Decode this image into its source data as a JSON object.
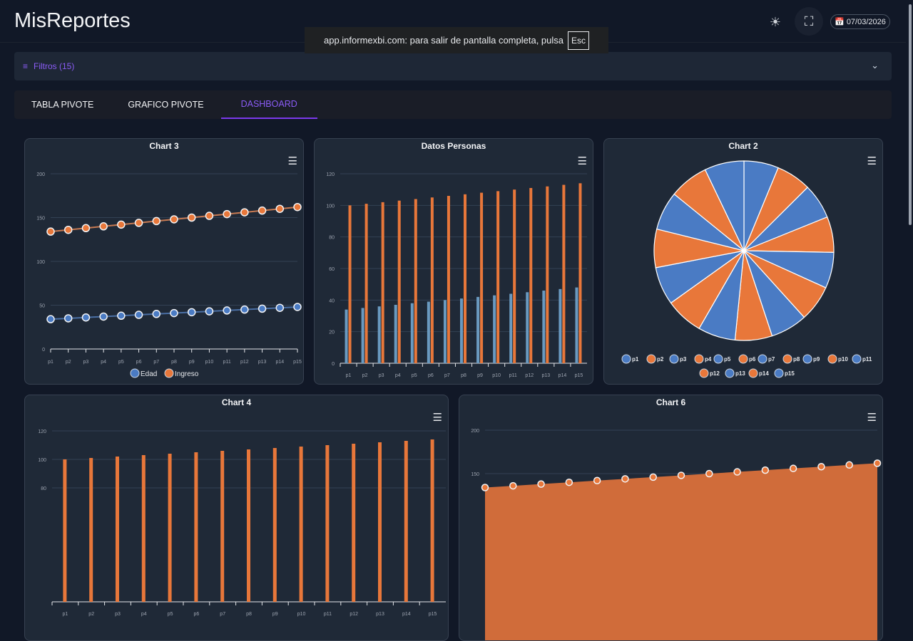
{
  "header": {
    "title": "MisReportes",
    "date": "07/03/2026",
    "icons": [
      "sun-icon",
      "fullscreen-icon",
      "calendar-icon"
    ]
  },
  "notice": {
    "text": "app.informexbi.com: para salir de pantalla completa, pulsa",
    "key": "Esc"
  },
  "filters": {
    "label": "Filtros (15)"
  },
  "tabs": [
    {
      "label": "TABLA PIVOTE"
    },
    {
      "label": "GRAFICO PIVOTE"
    },
    {
      "label": "DASHBOARD",
      "active": true
    }
  ],
  "colors": {
    "blue": "#4a7bc4",
    "orange": "#e8773a",
    "accent": "#7c3aed"
  },
  "chart_data": [
    {
      "title": "Chart 3",
      "type": "line",
      "categories": [
        "p1",
        "p2",
        "p3",
        "p4",
        "p5",
        "p6",
        "p7",
        "p8",
        "p9",
        "p10",
        "p11",
        "p12",
        "p13",
        "p14",
        "p15"
      ],
      "ylim": [
        0,
        200
      ],
      "yticks": [
        0,
        50,
        100,
        150,
        200
      ],
      "legend": "bottom",
      "series": [
        {
          "name": "Edad",
          "values": [
            34,
            35,
            36,
            37,
            38,
            39,
            40,
            41,
            42,
            43,
            44,
            45,
            46,
            47,
            48
          ]
        },
        {
          "name": "Ingreso",
          "values": [
            134,
            136,
            138,
            140,
            142,
            144,
            146,
            148,
            150,
            152,
            154,
            156,
            158,
            160,
            162
          ]
        }
      ]
    },
    {
      "title": "Datos Personas",
      "type": "bar",
      "categories": [
        "p1",
        "p2",
        "p3",
        "p4",
        "p5",
        "p6",
        "p7",
        "p8",
        "p9",
        "p10",
        "p11",
        "p12",
        "p13",
        "p14",
        "p15"
      ],
      "ylim": [
        0,
        120
      ],
      "yticks": [
        0,
        20,
        40,
        60,
        80,
        100,
        120
      ],
      "series": [
        {
          "values": [
            34,
            35,
            36,
            37,
            38,
            39,
            40,
            41,
            42,
            43,
            44,
            45,
            46,
            47,
            48
          ]
        },
        {
          "values": [
            100,
            101,
            102,
            103,
            104,
            105,
            106,
            107,
            108,
            109,
            110,
            111,
            112,
            113,
            114
          ]
        }
      ]
    },
    {
      "title": "Chart 2",
      "type": "pie",
      "categories": [
        "p1",
        "p2",
        "p3",
        "p4",
        "p5",
        "p6",
        "p7",
        "p8",
        "p9",
        "p10",
        "p11",
        "p12",
        "p13",
        "p14",
        "p15"
      ],
      "legend": "bottom",
      "values": [
        100,
        101,
        102,
        103,
        104,
        105,
        106,
        107,
        108,
        109,
        110,
        111,
        112,
        113,
        114
      ]
    },
    {
      "title": "Chart 4",
      "type": "bar",
      "categories": [
        "p1",
        "p2",
        "p3",
        "p4",
        "p5",
        "p6",
        "p7",
        "p8",
        "p9",
        "p10",
        "p11",
        "p12",
        "p13",
        "p14",
        "p15"
      ],
      "ylim": [
        0,
        120
      ],
      "yticks": [
        80,
        100,
        120
      ],
      "series": [
        {
          "values": [
            100,
            101,
            102,
            103,
            104,
            105,
            106,
            107,
            108,
            109,
            110,
            111,
            112,
            113,
            114
          ]
        }
      ]
    },
    {
      "title": "Chart 6",
      "type": "area",
      "categories": [
        "p1",
        "p2",
        "p3",
        "p4",
        "p5",
        "p6",
        "p7",
        "p8",
        "p9",
        "p10",
        "p11",
        "p12",
        "p13",
        "p14",
        "p15"
      ],
      "yticks": [
        150,
        200
      ],
      "series": [
        {
          "values": [
            134,
            136,
            138,
            140,
            142,
            144,
            146,
            148,
            150,
            152,
            154,
            156,
            158,
            160,
            162
          ]
        }
      ]
    }
  ]
}
